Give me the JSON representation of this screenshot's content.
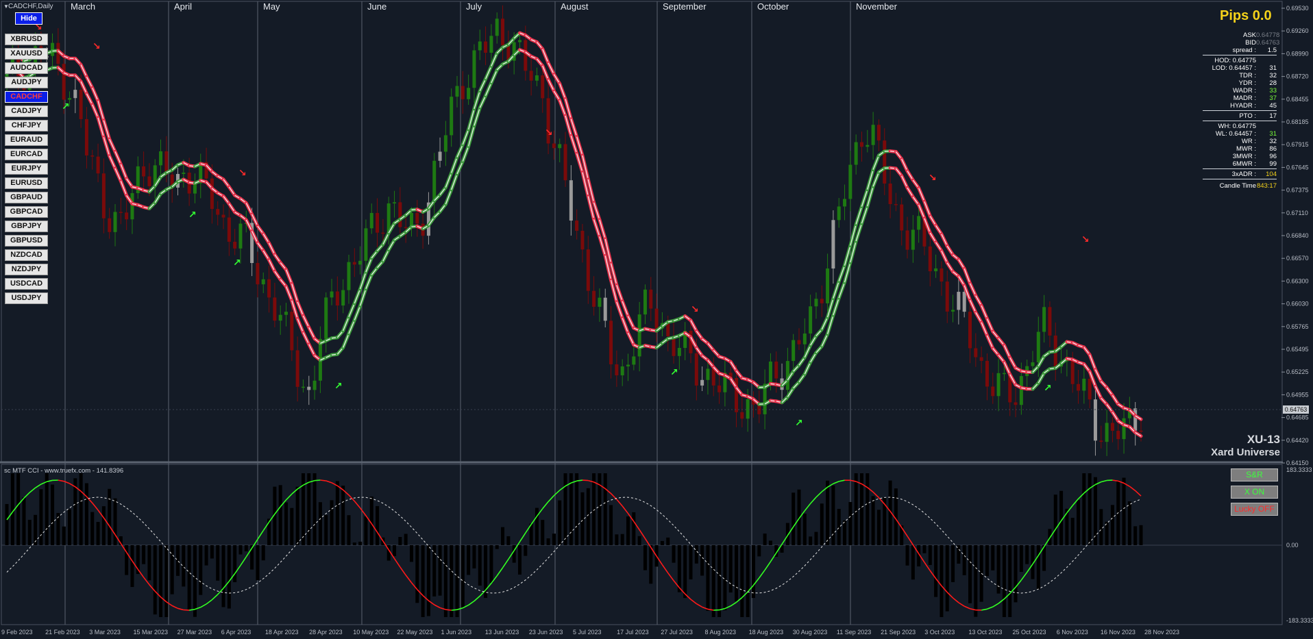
{
  "chart_title": "CADCHF,Daily",
  "hide_label": "Hide",
  "symbols": [
    "XBRUSD",
    "XAUUSD",
    "AUDCAD",
    "AUDJPY",
    "CADCHF",
    "CADJPY",
    "CHFJPY",
    "EURAUD",
    "EURCAD",
    "EURJPY",
    "EURUSD",
    "GBPAUD",
    "GBPCAD",
    "GBPJPY",
    "GBPUSD",
    "NZDCAD",
    "NZDJPY",
    "USDCAD",
    "USDJPY"
  ],
  "active_symbol": "CADCHF",
  "months": [
    "March",
    "April",
    "May",
    "June",
    "July",
    "August",
    "September",
    "October",
    "November"
  ],
  "pips": "Pips 0.0",
  "stats": [
    {
      "k": "ASK",
      "v": "0.64778",
      "c": "#7a7f88"
    },
    {
      "k": "BID",
      "v": "0.64763",
      "c": "#7a7f88"
    },
    {
      "k": "spread :",
      "v": "1.5",
      "c": "#ffffff",
      "sep": true
    },
    {
      "k": "HOD: 0.64775",
      "v": "",
      "c": "#ffffff"
    },
    {
      "k": "LOD: 0.64457 :",
      "v": "31",
      "c": "#ffffff"
    },
    {
      "k": "TDR :",
      "v": "32",
      "c": "#ffffff"
    },
    {
      "k": "YDR :",
      "v": "28",
      "c": "#ffffff"
    },
    {
      "k": "WADR :",
      "v": "33",
      "c": "#7cff3a"
    },
    {
      "k": "MADR :",
      "v": "37",
      "c": "#7cff3a"
    },
    {
      "k": "HYADR :",
      "v": "45",
      "c": "#ffffff",
      "sep": true
    },
    {
      "k": "PTO :",
      "v": "17",
      "c": "#ffffff",
      "sep": true
    },
    {
      "k": "WH: 0.64775",
      "v": "",
      "c": "#ffffff"
    },
    {
      "k": "WL: 0.64457 :",
      "v": "31",
      "c": "#7cff3a"
    },
    {
      "k": "WR :",
      "v": "32",
      "c": "#ffffff"
    },
    {
      "k": "MWR :",
      "v": "86",
      "c": "#ffffff"
    },
    {
      "k": "3MWR :",
      "v": "96",
      "c": "#ffffff"
    },
    {
      "k": "6MWR :",
      "v": "99",
      "c": "#ffffff",
      "sep": true
    },
    {
      "k": "3xADR :",
      "v": "104",
      "c": "#f5d21a",
      "sep": true
    },
    {
      "k": "Candle Time",
      "v": "843:17",
      "c": "#f5d21a",
      "tall": true
    }
  ],
  "brand_line1": "XU-13",
  "brand_line2": "Xard Universe",
  "indicator_title": "sc MTF CCI - www.truefx.com - 141.8396",
  "indicator_buttons": [
    {
      "label": "S&R",
      "color": "#3cff3c"
    },
    {
      "label": "X ON",
      "color": "#3cff3c"
    },
    {
      "label": "Lucky OFF",
      "color": "#ff2a2a"
    }
  ],
  "price_ticks": [
    "0.69530",
    "0.69260",
    "0.68990",
    "0.68720",
    "0.68455",
    "0.68185",
    "0.67915",
    "0.67645",
    "0.67375",
    "0.67110",
    "0.66840",
    "0.66570",
    "0.66300",
    "0.66030",
    "0.65765",
    "0.65495",
    "0.65225",
    "0.64955",
    "0.64685",
    "0.64420",
    "0.64150"
  ],
  "current_bid": "0.64763",
  "cci_ticks": [
    "183.3333",
    "0.00",
    "-183.3333"
  ],
  "date_ticks": [
    "9 Feb 2023",
    "21 Feb 2023",
    "3 Mar 2023",
    "15 Mar 2023",
    "27 Mar 2023",
    "6 Apr 2023",
    "18 Apr 2023",
    "28 Apr 2023",
    "10 May 2023",
    "22 May 2023",
    "1 Jun 2023",
    "13 Jun 2023",
    "23 Jun 2023",
    "5 Jul 2023",
    "17 Jul 2023",
    "27 Jul 2023",
    "8 Aug 2023",
    "18 Aug 2023",
    "30 Aug 2023",
    "11 Sep 2023",
    "21 Sep 2023",
    "3 Oct 2023",
    "13 Oct 2023",
    "25 Oct 2023",
    "6 Nov 2023",
    "16 Nov 2023",
    "28 Nov 2023"
  ],
  "colors": {
    "background": "#141b26",
    "bull": "#1e7a12",
    "bear": "#7a0a0a",
    "neutral": "#9a9a9a",
    "ma_down": "#e8334d",
    "ma_up": "#3d9a3d",
    "cci_green": "#33ff22",
    "cci_red": "#ff1a1a",
    "accent": "#f5d21a"
  },
  "chart_data": {
    "type": "candlestick",
    "symbol": "CADCHF",
    "timeframe": "Daily",
    "price_range": [
      0.6415,
      0.6953
    ],
    "closes_approx": [
      0.6871,
      0.6878,
      0.6884,
      0.6895,
      0.69,
      0.689,
      0.688,
      0.686,
      0.683,
      0.678,
      0.675,
      0.672,
      0.67,
      0.669,
      0.673,
      0.676,
      0.677,
      0.676,
      0.675,
      0.6745,
      0.676,
      0.6755,
      0.674,
      0.6725,
      0.67,
      0.669,
      0.668,
      0.667,
      0.664,
      0.662,
      0.66,
      0.657,
      0.654,
      0.651,
      0.649,
      0.656,
      0.659,
      0.662,
      0.664,
      0.665,
      0.667,
      0.669,
      0.671,
      0.672,
      0.67,
      0.668,
      0.67,
      0.672,
      0.676,
      0.68,
      0.684,
      0.687,
      0.688,
      0.69,
      0.691,
      0.693,
      0.692,
      0.69,
      0.688,
      0.687,
      0.685,
      0.68,
      0.676,
      0.672,
      0.668,
      0.664,
      0.66,
      0.656,
      0.653,
      0.652,
      0.655,
      0.658,
      0.66,
      0.659,
      0.656,
      0.655,
      0.654,
      0.653,
      0.652,
      0.651,
      0.65,
      0.6495,
      0.649,
      0.648,
      0.647,
      0.65,
      0.652,
      0.653,
      0.654,
      0.656,
      0.658,
      0.662,
      0.666,
      0.67,
      0.674,
      0.678,
      0.682,
      0.68,
      0.676,
      0.672,
      0.67,
      0.669,
      0.668,
      0.666,
      0.664,
      0.662,
      0.66,
      0.658,
      0.656,
      0.653,
      0.651,
      0.65,
      0.649,
      0.65,
      0.652,
      0.655,
      0.657,
      0.656,
      0.654,
      0.652,
      0.65,
      0.648,
      0.646,
      0.645,
      0.6445,
      0.645,
      0.646,
      0.6476
    ],
    "cci_range": [
      -183.3333,
      183.3333
    ]
  }
}
